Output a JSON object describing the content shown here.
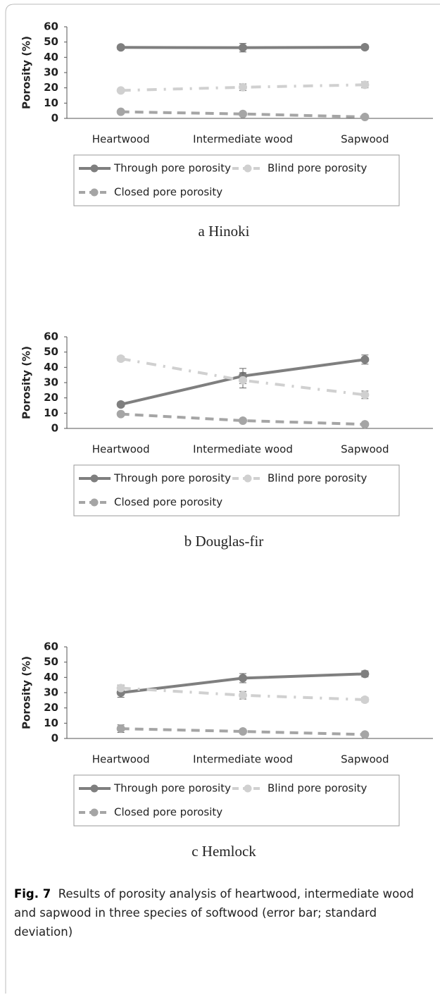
{
  "chart_data": [
    {
      "type": "line",
      "title": "a Hinoki",
      "ylabel": "Porosity (%)",
      "categories": [
        "Heartwood",
        "Intermediate wood",
        "Sapwood"
      ],
      "ylim": [
        0,
        60
      ],
      "yticks": [
        0,
        10,
        20,
        30,
        40,
        50,
        60
      ],
      "grid": false,
      "series": [
        {
          "name": "Through pore porosity",
          "color": "#7f7f7f",
          "dash": "solid",
          "values": [
            46.5,
            46.3,
            46.6
          ],
          "errors": [
            1.5,
            2.8,
            1.5
          ]
        },
        {
          "name": "Blind pore porosity",
          "color": "#d0d0d0",
          "dash": "dashdot",
          "values": [
            18.3,
            20.4,
            22
          ],
          "errors": [
            1,
            2.2,
            2
          ]
        },
        {
          "name": "Closed pore porosity",
          "color": "#a5a5a5",
          "dash": "dash",
          "values": [
            4.3,
            2.9,
            0.9
          ],
          "errors": [
            0.5,
            0.5,
            0.5
          ]
        }
      ]
    },
    {
      "type": "line",
      "title": "b Douglas-fir",
      "ylabel": "Porosity (%)",
      "categories": [
        "Heartwood",
        "Intermediate wood",
        "Sapwood"
      ],
      "ylim": [
        0,
        60
      ],
      "yticks": [
        0,
        10,
        20,
        30,
        40,
        50,
        60
      ],
      "grid": false,
      "series": [
        {
          "name": "Through pore porosity",
          "color": "#7f7f7f",
          "dash": "solid",
          "values": [
            15.7,
            34.3,
            45.1
          ],
          "errors": [
            1.5,
            5,
            3
          ]
        },
        {
          "name": "Blind pore porosity",
          "color": "#d0d0d0",
          "dash": "dashdot",
          "values": [
            45.7,
            31.5,
            22
          ],
          "errors": [
            1.5,
            5,
            2.5
          ]
        },
        {
          "name": "Closed pore porosity",
          "color": "#a5a5a5",
          "dash": "dash",
          "values": [
            9.4,
            5.1,
            2.7
          ],
          "errors": [
            0.5,
            0.5,
            0.5
          ]
        }
      ]
    },
    {
      "type": "line",
      "title": "c Hemlock",
      "ylabel": "Porosity (%)",
      "categories": [
        "Heartwood",
        "Intermediate wood",
        "Sapwood"
      ],
      "ylim": [
        0,
        60
      ],
      "yticks": [
        0,
        10,
        20,
        30,
        40,
        50,
        60
      ],
      "grid": false,
      "series": [
        {
          "name": "Through pore porosity",
          "color": "#7f7f7f",
          "dash": "solid",
          "values": [
            30,
            39.5,
            42.3
          ],
          "errors": [
            3,
            3,
            2
          ]
        },
        {
          "name": "Blind pore porosity",
          "color": "#d0d0d0",
          "dash": "dashdot",
          "values": [
            33,
            28.3,
            25.4
          ],
          "errors": [
            2,
            2.5,
            1.5
          ]
        },
        {
          "name": "Closed pore porosity",
          "color": "#a5a5a5",
          "dash": "dash",
          "values": [
            6.4,
            4.6,
            2.6
          ],
          "errors": [
            2.5,
            0.5,
            0.5
          ]
        }
      ]
    }
  ],
  "caption": {
    "label": "Fig. 7",
    "text": "Results of porosity analysis of heartwood, intermediate wood and sapwood in three species of softwood (error bar; standard deviation)"
  }
}
